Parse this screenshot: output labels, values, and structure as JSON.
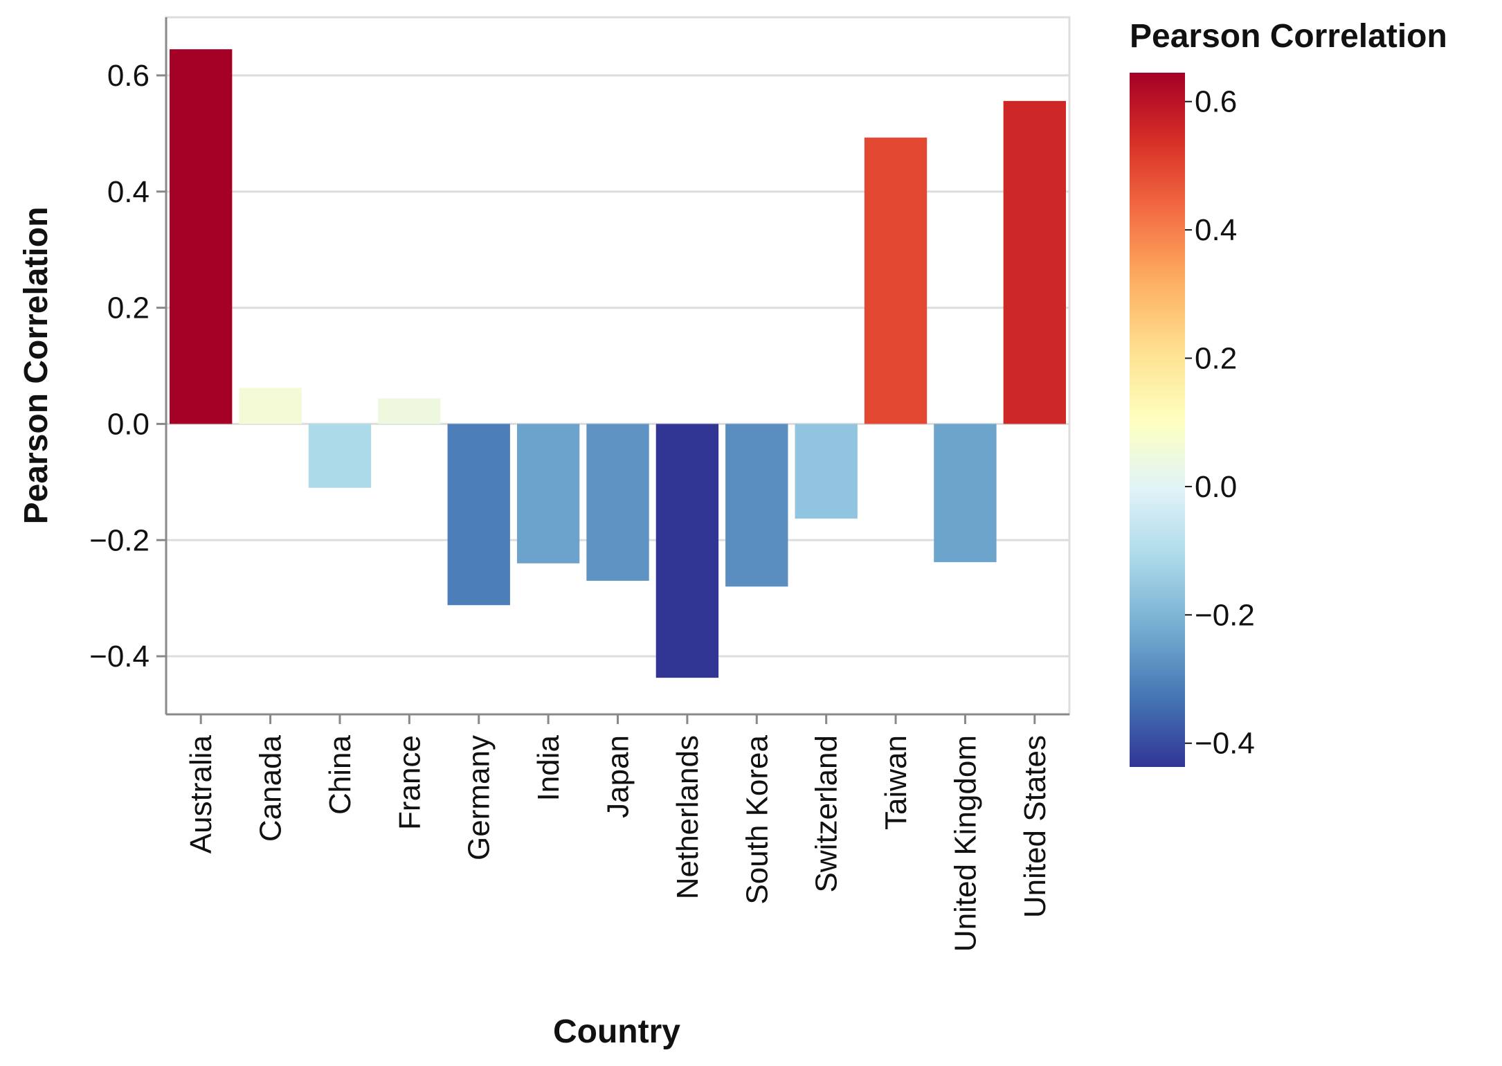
{
  "chart_data": {
    "type": "bar",
    "title": "",
    "xlabel": "Country",
    "ylabel": "Pearson Correlation",
    "categories": [
      "Australia",
      "Canada",
      "China",
      "France",
      "Germany",
      "India",
      "Japan",
      "Netherlands",
      "South Korea",
      "Switzerland",
      "Taiwan",
      "United Kingdom",
      "United States"
    ],
    "series": [
      {
        "values": [
          0.645,
          0.062,
          -0.11,
          0.044,
          -0.312,
          -0.24,
          -0.27,
          -0.437,
          -0.28,
          -0.163,
          0.493,
          -0.238,
          0.556
        ]
      }
    ],
    "ylim": [
      -0.5,
      0.7
    ],
    "y_ticks": [
      -0.4,
      -0.2,
      0.0,
      0.2,
      0.4,
      0.6
    ],
    "y_tick_labels": [
      "−0.4",
      "−0.2",
      "0.0",
      "0.2",
      "0.4",
      "0.6"
    ],
    "grid": "horizontal",
    "legend": {
      "title": "Pearson Correlation",
      "position": "right",
      "type": "color-gradient",
      "domain": [
        -0.437,
        0.645
      ],
      "ticks": [
        -0.4,
        -0.2,
        0.0,
        0.2,
        0.4,
        0.6
      ],
      "tick_labels": [
        "−0.4",
        "−0.2",
        "0.0",
        "0.2",
        "0.4",
        "0.6"
      ],
      "color_scheme": "redyellowblue (reversed)"
    },
    "colors": {
      "gridline": "#dddddd",
      "axis": "#888888",
      "scheme_stops": [
        "#313695",
        "#4575b4",
        "#74add1",
        "#abd9e9",
        "#e0f3f8",
        "#ffffbf",
        "#fee090",
        "#fdae61",
        "#f46d43",
        "#d73027",
        "#a50026"
      ]
    }
  }
}
